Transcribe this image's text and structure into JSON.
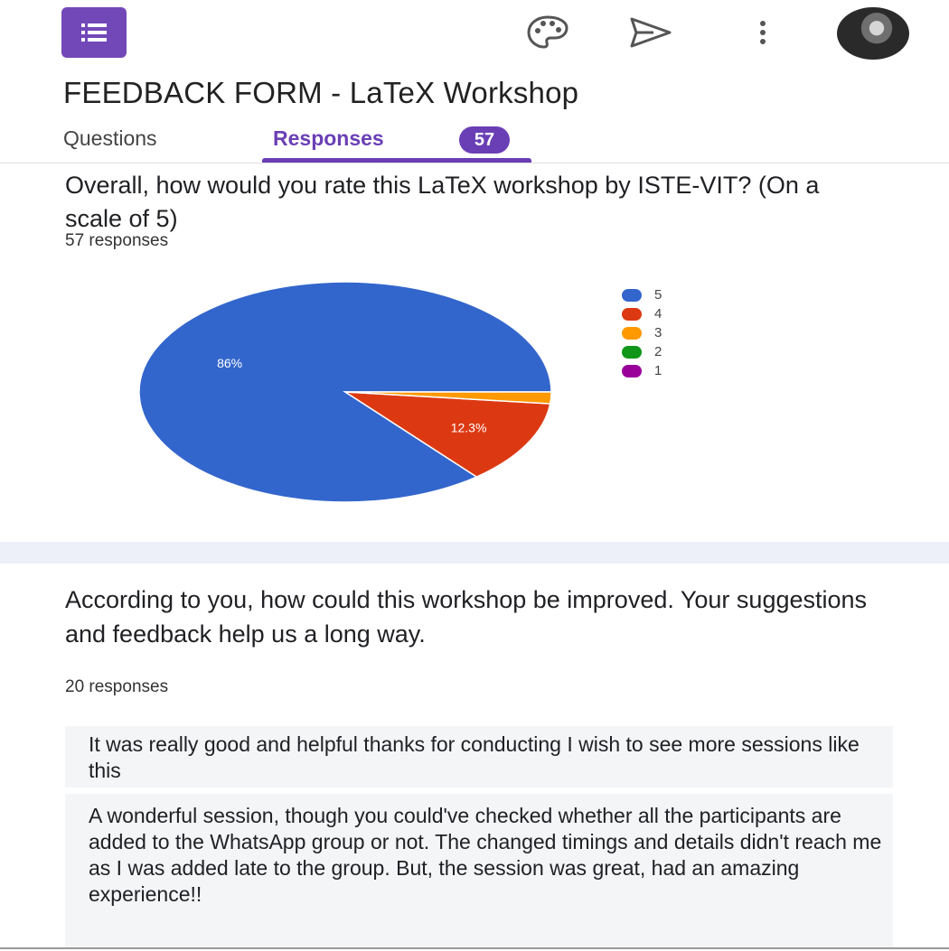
{
  "header": {
    "app_icon": "forms-list-icon",
    "actions": [
      {
        "icon": "palette-icon"
      },
      {
        "icon": "send-icon"
      },
      {
        "icon": "more-vert-icon"
      }
    ],
    "avatar": "user-avatar"
  },
  "form_title": "FEEDBACK FORM - LaTeX Workshop",
  "tabs": [
    {
      "label": "Questions",
      "active": false
    },
    {
      "label": "Responses",
      "active": true,
      "badge": "57"
    }
  ],
  "question1": {
    "title": "Overall, how would you rate this LaTeX workshop by ISTE-VIT? (On a scale of 5)",
    "responses_label": "57 responses",
    "chart_data": {
      "type": "pie",
      "slices": [
        {
          "label": "5",
          "value": 86.0,
          "color": "#3366cc",
          "data_label": "86%"
        },
        {
          "label": "4",
          "value": 12.3,
          "color": "#dc3912",
          "data_label": "12.3%"
        },
        {
          "label": "3",
          "value": 1.7,
          "color": "#ff9900",
          "data_label": ""
        },
        {
          "label": "2",
          "value": 0,
          "color": "#109618",
          "data_label": ""
        },
        {
          "label": "1",
          "value": 0,
          "color": "#990099",
          "data_label": ""
        }
      ],
      "legend": [
        "5",
        "4",
        "3",
        "2",
        "1"
      ],
      "legend_position": "right"
    }
  },
  "question2": {
    "title": "According to you, how could this workshop be improved. Your suggestions and feedback help us a long way.",
    "responses_label": "20 responses",
    "responses": [
      "It was really good and helpful thanks for conducting I wish to see more sessions like this",
      "A wonderful session, though you could've checked whether all the participants are added to the WhatsApp group or not. The changed timings and details didn't reach me as I was added late to the group. But, the session was great, had an amazing experience!!"
    ]
  }
}
